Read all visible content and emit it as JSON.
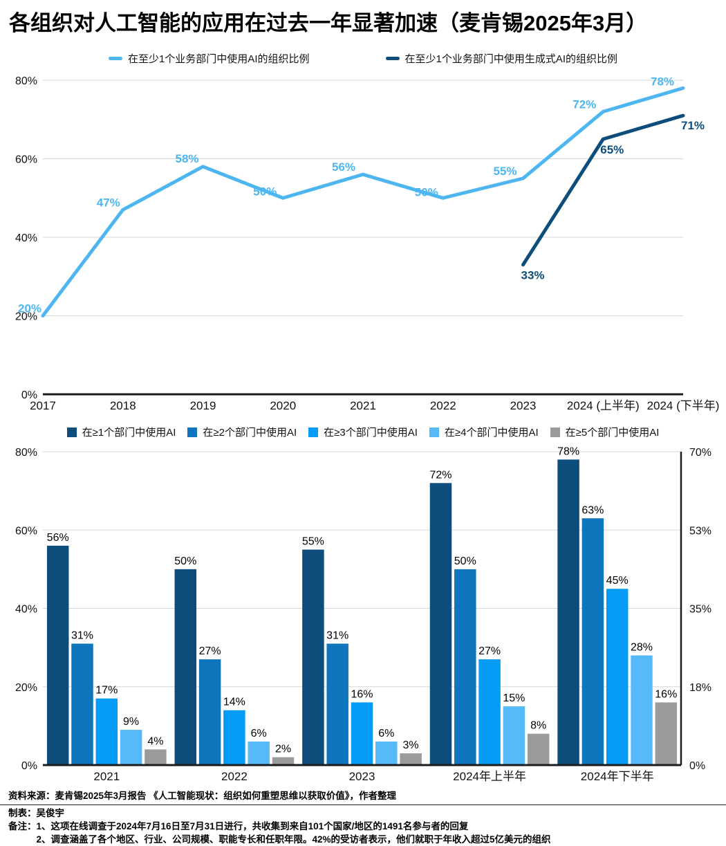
{
  "title": "各组织对人工智能的应用在过去一年显著加速（麦肯锡2025年3月）",
  "chart_data": [
    {
      "type": "line",
      "title": "",
      "x": [
        "2017",
        "2018",
        "2019",
        "2020",
        "2021",
        "2022",
        "2023",
        "2024 (上半年)",
        "2024 (下半年)"
      ],
      "ylim": [
        0,
        80
      ],
      "yticks": [
        0,
        20,
        40,
        60,
        80
      ],
      "ytick_labels": [
        "0%",
        "20%",
        "40%",
        "60%",
        "80%"
      ],
      "grid": true,
      "legend_position": "top",
      "series": [
        {
          "name": "在至少1个业务部门中使用AI的组织比例",
          "color": "#4DB6F0",
          "values": [
            20,
            47,
            58,
            50,
            56,
            50,
            55,
            72,
            78
          ],
          "labels": [
            "20%",
            "47%",
            "58%",
            "50%",
            "56%",
            "50%",
            "55%",
            "72%",
            "78%"
          ],
          "label_dx": [
            -19,
            -21,
            -23,
            -26,
            -28,
            -24,
            -26,
            -27,
            -30
          ],
          "label_dy": [
            -5,
            -5,
            -6,
            -4,
            -5,
            -3,
            -5,
            -5,
            -4
          ]
        },
        {
          "name": "在至少1个业务部门中使用生成式AI的组织比例",
          "color": "#0D4D7C",
          "values": [
            null,
            null,
            null,
            null,
            null,
            null,
            33,
            65,
            71
          ],
          "labels": [
            null,
            null,
            null,
            null,
            null,
            null,
            "33%",
            "65%",
            "71%"
          ],
          "label_dx": [
            0,
            0,
            0,
            0,
            0,
            0,
            14,
            13,
            14
          ],
          "label_dy": [
            0,
            0,
            0,
            0,
            0,
            0,
            21,
            21,
            20
          ]
        }
      ]
    },
    {
      "type": "bar",
      "title": "",
      "categories": [
        "2021",
        "2022",
        "2023",
        "2024年上半年",
        "2024年下半年"
      ],
      "ylim_left": [
        0,
        80
      ],
      "ytick_labels_left": [
        "0%",
        "20%",
        "40%",
        "60%",
        "80%"
      ],
      "ylim_right": [
        0,
        70
      ],
      "ytick_labels_right": [
        "0%",
        "18%",
        "35%",
        "53%",
        "70%"
      ],
      "grid": true,
      "legend_position": "top",
      "series": [
        {
          "name": "在≥1个部门中使用AI",
          "color": "#0D4D7C",
          "values": [
            56,
            50,
            55,
            72,
            78
          ]
        },
        {
          "name": "在≥2个部门中使用AI",
          "color": "#0F76BE",
          "values": [
            31,
            27,
            31,
            50,
            63
          ]
        },
        {
          "name": "在≥3个部门中使用AI",
          "color": "#069CF6",
          "values": [
            17,
            14,
            16,
            27,
            45
          ]
        },
        {
          "name": "在≥4个部门中使用AI",
          "color": "#57BAF8",
          "values": [
            9,
            6,
            6,
            15,
            28
          ]
        },
        {
          "name": "在≥5个部门中使用AI",
          "color": "#9B9B9B",
          "values": [
            4,
            2,
            3,
            8,
            16
          ]
        }
      ]
    }
  ],
  "footer": {
    "source": "资料来源：麦肯锡2025年3月报告 《人工智能现状：组织如何重塑思维以获取价值》，作者整理",
    "author": "制表：吴俊宇",
    "note_label": "备注：",
    "notes": [
      "1、这项在线调查于2024年7月16日至7月31日进行，共收集到来自101个国家/地区的1491名参与者的回复",
      "2、调查涵盖了各个地区、行业、公司规模、职能专长和任职年限。42%的受访者表示，他们就职于年收入超过5亿美元的组织"
    ]
  }
}
